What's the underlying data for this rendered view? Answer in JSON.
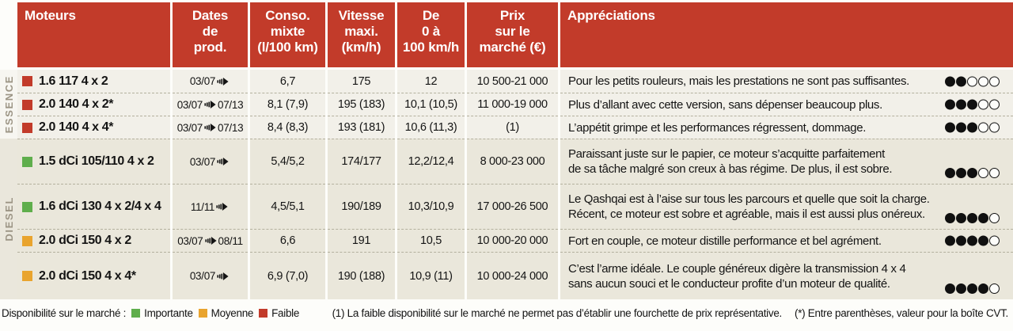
{
  "colors": {
    "header_red": "#c23b2a",
    "importante": "#5fae4c",
    "moyenne": "#e9a42e",
    "faible": "#c23b2a"
  },
  "header": {
    "columns": [
      "Moteurs",
      "Dates\nde\nprod.",
      "Conso.\nmixte\n(l/100 km)",
      "Vitesse\nmaxi.\n(km/h)",
      "De\n0 à\n100 km/h",
      "Prix\nsur le\nmarché (€)",
      "Appréciations"
    ]
  },
  "groups": [
    {
      "label": "ESSENCE"
    },
    {
      "label": "DIESEL"
    }
  ],
  "rows": [
    {
      "availability": "faible",
      "name": "1.6 117 4 x 2",
      "date_start": "03/07",
      "date_end": "",
      "conso": "6,7",
      "vmax": "175",
      "acc": "12",
      "prix": "10 500-21 000",
      "note": "Pour les petits rouleurs, mais les prestations ne sont pas suffisantes.",
      "rating": 2
    },
    {
      "availability": "faible",
      "name": "2.0 140 4 x 2*",
      "date_start": "03/07",
      "date_end": "07/13",
      "conso": "8,1 (7,9)",
      "vmax": "195 (183)",
      "acc": "10,1 (10,5)",
      "prix": "11 000-19 000",
      "note": "Plus d’allant avec cette version, sans dépenser beaucoup plus.",
      "rating": 3
    },
    {
      "availability": "faible",
      "name": "2.0 140 4 x 4*",
      "date_start": "03/07",
      "date_end": "07/13",
      "conso": "8,4 (8,3)",
      "vmax": "193 (181)",
      "acc": "10,6 (11,3)",
      "prix": "(1)",
      "note": "L’appétit grimpe et les performances régressent, dommage.",
      "rating": 3
    },
    {
      "availability": "importante",
      "name": "1.5 dCi 105/110 4 x 2",
      "date_start": "03/07",
      "date_end": "",
      "conso": "5,4/5,2",
      "vmax": "174/177",
      "acc": "12,2/12,4",
      "prix": "8 000-23 000",
      "note": "Paraissant juste sur le papier, ce moteur s’acquitte parfaitement\nde sa tâche malgré son creux à bas régime. De plus, il est sobre.",
      "rating": 3
    },
    {
      "availability": "importante",
      "name": "1.6 dCi 130 4 x 2/4 x 4",
      "date_start": "11/11",
      "date_end": "",
      "conso": "4,5/5,1",
      "vmax": "190/189",
      "acc": "10,3/10,9",
      "prix": "17 000-26 500",
      "note": "Le Qashqai est à l’aise sur tous les parcours et quelle que soit la charge.\nRécent, ce moteur est sobre et agréable, mais il est aussi plus onéreux.",
      "rating": 4
    },
    {
      "availability": "moyenne",
      "name": "2.0 dCi 150 4 x 2",
      "date_start": "03/07",
      "date_end": "08/11",
      "conso": "6,6",
      "vmax": "191",
      "acc": "10,5",
      "prix": "10 000-20 000",
      "note": "Fort en couple, ce moteur distille performance et bel agrément.",
      "rating": 4
    },
    {
      "availability": "moyenne",
      "name": "2.0 dCi 150 4 x 4*",
      "date_start": "03/07",
      "date_end": "",
      "conso": "6,9 (7,0)",
      "vmax": "190 (188)",
      "acc": "10,9 (11)",
      "prix": "10 000-24 000",
      "note": "C’est l’arme idéale. Le couple généreux digère la transmission 4 x 4\nsans aucun souci et le conducteur profite d’un moteur de qualité.",
      "rating": 4
    }
  ],
  "legend": {
    "title": "Disponibilité sur le marché :",
    "items": [
      {
        "label": "Importante",
        "key": "importante"
      },
      {
        "label": "Moyenne",
        "key": "moyenne"
      },
      {
        "label": "Faible",
        "key": "faible"
      }
    ]
  },
  "footnotes": [
    "(1) La faible disponibilité sur le marché ne permet pas d’établir une fourchette de prix représentative.",
    "(*) Entre parenthèses, valeur pour la boîte CVT."
  ]
}
